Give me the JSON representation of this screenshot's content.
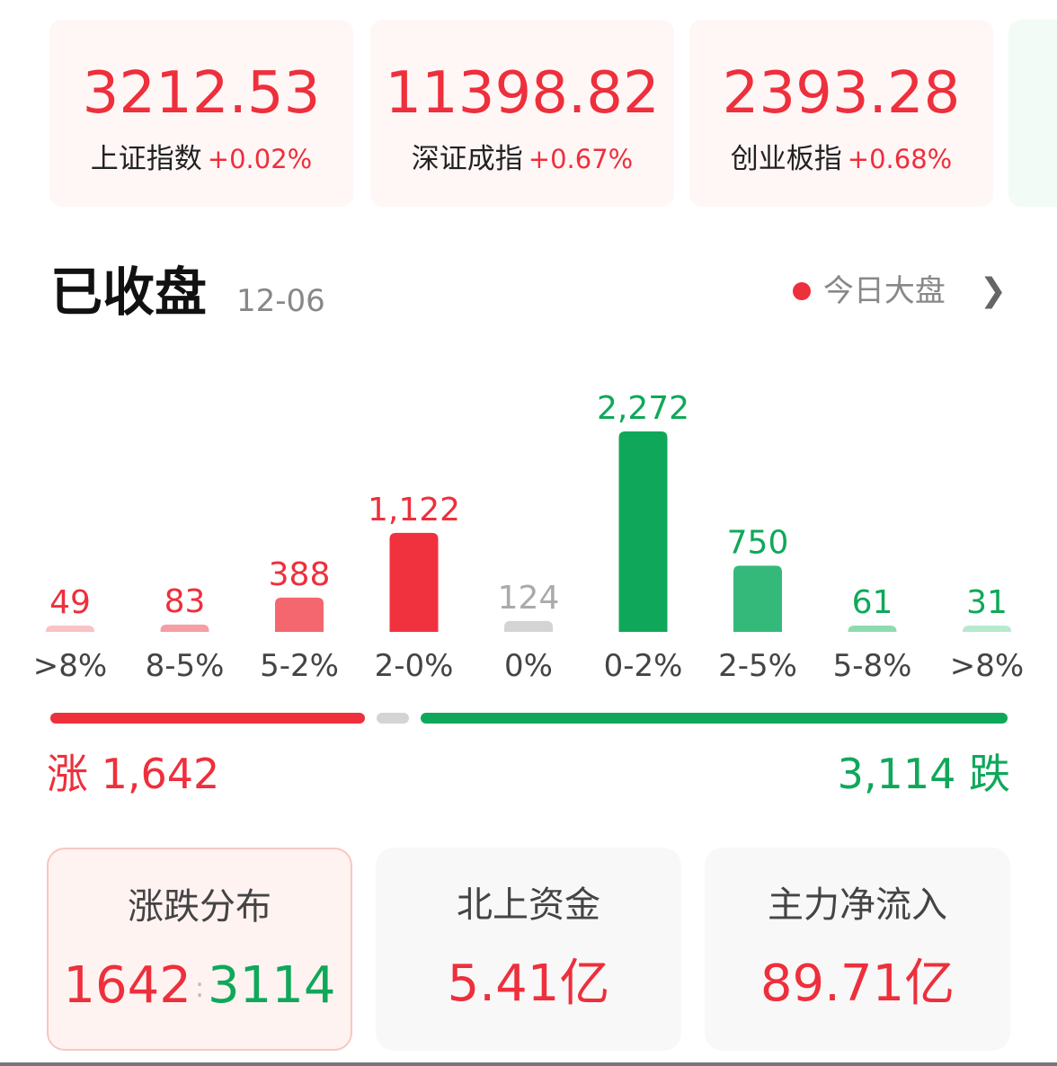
{
  "indices": [
    {
      "value": "3212.53",
      "name": "上证指数",
      "change": "+0.02%"
    },
    {
      "value": "11398.82",
      "name": "深证成指",
      "change": "+0.67%"
    },
    {
      "value": "2393.28",
      "name": "创业板指",
      "change": "+0.68%"
    }
  ],
  "section": {
    "title": "已收盘",
    "date": "12-06",
    "link_label": "今日大盘",
    "chevron": "chevron-right-icon"
  },
  "colors": {
    "up": "#ee2f3c",
    "down": "#0fa85a",
    "flat": "#d0d0d0"
  },
  "chart_data": {
    "type": "bar",
    "categories": [
      ">8%",
      "8-5%",
      "5-2%",
      "2-0%",
      "0%",
      "0-2%",
      "2-5%",
      "5-8%",
      ">8%"
    ],
    "values": [
      49,
      83,
      388,
      1122,
      124,
      2272,
      750,
      61,
      31
    ],
    "labels": [
      "49",
      "83",
      "388",
      "1,122",
      "124",
      "2,272",
      "750",
      "61",
      "31"
    ],
    "bar_colors": [
      "#f8c3c6",
      "#f59ea4",
      "#f4676f",
      "#f0323e",
      "#d4d4d4",
      "#0fa85a",
      "#34b97a",
      "#8fdab2",
      "#b7e9cf"
    ],
    "label_colors": [
      "#ee2f3c",
      "#ee2f3c",
      "#ee2f3c",
      "#ee2f3c",
      "#aaaaaa",
      "#0fa85a",
      "#0fa85a",
      "#0fa85a",
      "#0fa85a"
    ]
  },
  "summary": {
    "rise_label": "涨",
    "rise_count": "1,642",
    "fall_label": "跌",
    "fall_count": "3,114",
    "rise": 1642,
    "flat": 124,
    "fall": 3114
  },
  "stats": [
    {
      "label": "涨跌分布",
      "up": "1642",
      "sep": ":",
      "down": "3114"
    },
    {
      "label": "北上资金",
      "value": "5.41亿"
    },
    {
      "label": "主力净流入",
      "value": "89.71亿"
    }
  ]
}
